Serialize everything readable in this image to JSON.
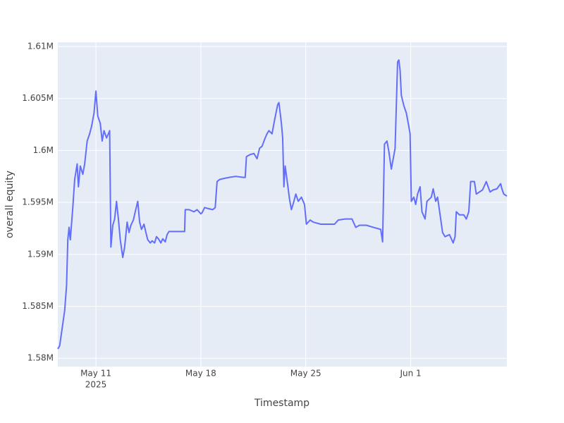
{
  "chart_data": {
    "type": "line",
    "x_label": "Timestamp",
    "y_label": "overall equity",
    "x": [
      "2025-05-08 11:00",
      "2025-05-08 14:00",
      "2025-05-08 18:00",
      "2025-05-08 22:00",
      "2025-05-09 01:00",
      "2025-05-09 03:00",
      "2025-05-09 05:00",
      "2025-05-09 07:00",
      "2025-05-09 11:00",
      "2025-05-09 14:00",
      "2025-05-09 18:00",
      "2025-05-09 20:00",
      "2025-05-09 23:00",
      "2025-05-10 03:00",
      "2025-05-10 06:00",
      "2025-05-10 10:00",
      "2025-05-10 14:00",
      "2025-05-10 17:00",
      "2025-05-10 21:00",
      "2025-05-11 00:00",
      "2025-05-11 03:00",
      "2025-05-11 07:00",
      "2025-05-11 10:00",
      "2025-05-11 13:00",
      "2025-05-11 17:00",
      "2025-05-11 20:00",
      "2025-05-11 22:00",
      "2025-05-12 00:00",
      "2025-05-12 03:00",
      "2025-05-12 06:00",
      "2025-05-12 09:00",
      "2025-05-12 12:00",
      "2025-05-12 15:00",
      "2025-05-12 19:00",
      "2025-05-12 22:00",
      "2025-05-13 02:00",
      "2025-05-13 05:00",
      "2025-05-13 08:00",
      "2025-05-13 12:00",
      "2025-05-13 15:00",
      "2025-05-13 19:00",
      "2025-05-13 22:00",
      "2025-05-14 01:00",
      "2025-05-14 05:00",
      "2025-05-14 08:00",
      "2025-05-14 11:00",
      "2025-05-14 15:00",
      "2025-05-14 18:00",
      "2025-05-14 22:00",
      "2025-05-15 01:00",
      "2025-05-15 04:00",
      "2025-05-15 08:00",
      "2025-05-15 11:00",
      "2025-05-15 15:00",
      "2025-05-15 18:00",
      "2025-05-15 21:00",
      "2025-05-16 03:00",
      "2025-05-16 14:00",
      "2025-05-16 22:00",
      "2025-05-16 23:00",
      "2025-05-17 05:00",
      "2025-05-17 13:00",
      "2025-05-17 18:00",
      "2025-05-18 00:00",
      "2025-05-18 02:00",
      "2025-05-18 06:00",
      "2025-05-18 12:00",
      "2025-05-18 19:00",
      "2025-05-18 23:00",
      "2025-05-19 02:00",
      "2025-05-19 06:00",
      "2025-05-19 13:00",
      "2025-05-19 21:00",
      "2025-05-20 08:00",
      "2025-05-20 20:00",
      "2025-05-20 23:00",
      "2025-05-21 01:00",
      "2025-05-21 07:00",
      "2025-05-21 13:00",
      "2025-05-21 18:00",
      "2025-05-21 22:00",
      "2025-05-22 02:00",
      "2025-05-22 07:00",
      "2025-05-22 10:00",
      "2025-05-22 13:00",
      "2025-05-22 18:00",
      "2025-05-22 22:00",
      "2025-05-23 03:00",
      "2025-05-23 05:00",
      "2025-05-23 09:00",
      "2025-05-23 11:00",
      "2025-05-23 13:00",
      "2025-05-23 15:00",
      "2025-05-23 19:00",
      "2025-05-23 22:00",
      "2025-05-24 01:00",
      "2025-05-24 05:00",
      "2025-05-24 08:00",
      "2025-05-24 12:00",
      "2025-05-24 17:00",
      "2025-05-24 22:00",
      "2025-05-25 01:00",
      "2025-05-25 07:00",
      "2025-05-25 12:00",
      "2025-05-26 00:00",
      "2025-05-26 11:00",
      "2025-05-26 22:00",
      "2025-05-27 04:00",
      "2025-05-27 15:00",
      "2025-05-28 02:00",
      "2025-05-28 08:00",
      "2025-05-28 14:00",
      "2025-05-29 01:00",
      "2025-05-29 12:00",
      "2025-05-30 00:00",
      "2025-05-30 03:00",
      "2025-05-30 06:00",
      "2025-05-30 10:00",
      "2025-05-30 13:00",
      "2025-05-30 17:00",
      "2025-05-30 20:00",
      "2025-05-30 23:00",
      "2025-05-31 03:00",
      "2025-05-31 05:00",
      "2025-05-31 07:00",
      "2025-05-31 09:00",
      "2025-05-31 13:00",
      "2025-05-31 17:00",
      "2025-05-31 21:00",
      "2025-05-31 23:00",
      "2025-06-01 01:00",
      "2025-06-01 05:00",
      "2025-06-01 08:00",
      "2025-06-01 11:00",
      "2025-06-01 15:00",
      "2025-06-01 18:00",
      "2025-06-01 23:00",
      "2025-06-02 02:00",
      "2025-06-02 09:00",
      "2025-06-02 12:00",
      "2025-06-02 16:00",
      "2025-06-02 19:00",
      "2025-06-03 00:00",
      "2025-06-03 03:00",
      "2025-06-03 07:00",
      "2025-06-03 14:00",
      "2025-06-03 20:00",
      "2025-06-03 23:00",
      "2025-06-04 01:00",
      "2025-06-04 06:00",
      "2025-06-04 13:00",
      "2025-06-04 17:00",
      "2025-06-04 21:00",
      "2025-06-05 00:00",
      "2025-06-05 06:00",
      "2025-06-05 09:00",
      "2025-06-05 14:00",
      "2025-06-05 19:00",
      "2025-06-06 01:00",
      "2025-06-06 07:00",
      "2025-06-06 12:00",
      "2025-06-06 18:00",
      "2025-06-07 00:00",
      "2025-06-07 02:00",
      "2025-06-07 05:00",
      "2025-06-07 10:00"
    ],
    "series": [
      {
        "color": "#636efa",
        "values": [
          1580900,
          1581200,
          1582900,
          1584600,
          1587000,
          1591400,
          1592600,
          1591400,
          1594500,
          1597200,
          1598700,
          1596500,
          1598500,
          1597700,
          1598700,
          1600900,
          1601600,
          1602300,
          1603600,
          1605700,
          1603300,
          1602600,
          1600900,
          1601900,
          1601200,
          1601600,
          1601900,
          1590700,
          1592800,
          1593400,
          1595100,
          1593400,
          1591400,
          1589700,
          1590700,
          1593100,
          1592100,
          1592800,
          1593300,
          1594100,
          1595100,
          1593100,
          1592400,
          1592900,
          1592100,
          1591400,
          1591100,
          1591300,
          1591100,
          1591700,
          1591500,
          1591100,
          1591500,
          1591200,
          1591900,
          1592200,
          1592200,
          1592200,
          1592200,
          1594300,
          1594300,
          1594100,
          1594300,
          1593900,
          1594000,
          1594500,
          1594400,
          1594300,
          1594500,
          1597000,
          1597200,
          1597300,
          1597400,
          1597500,
          1597400,
          1597400,
          1599400,
          1599600,
          1599700,
          1599200,
          1600200,
          1600400,
          1601200,
          1601600,
          1601900,
          1601600,
          1602900,
          1604400,
          1604600,
          1602600,
          1601200,
          1596500,
          1598500,
          1596700,
          1595300,
          1594300,
          1595100,
          1595800,
          1595100,
          1595500,
          1594800,
          1592900,
          1593300,
          1593100,
          1592900,
          1592900,
          1592900,
          1593300,
          1593400,
          1593400,
          1592600,
          1592800,
          1592800,
          1592600,
          1592400,
          1591200,
          1600600,
          1600900,
          1599900,
          1598200,
          1599200,
          1600200,
          1608500,
          1608700,
          1607700,
          1605300,
          1604300,
          1603600,
          1602300,
          1601600,
          1595100,
          1595500,
          1594800,
          1595800,
          1596500,
          1594100,
          1593400,
          1595100,
          1595500,
          1596300,
          1595100,
          1595500,
          1593400,
          1592100,
          1591700,
          1591900,
          1591100,
          1591700,
          1594100,
          1593800,
          1593800,
          1593400,
          1594100,
          1597000,
          1597000,
          1595800,
          1596000,
          1596200,
          1597000,
          1596000,
          1596200,
          1596300,
          1596800,
          1596300,
          1595800,
          1595600
        ]
      }
    ],
    "xlim": [
      "2025-05-08 11:00",
      "2025-06-07 10:00"
    ],
    "xticks": [
      {
        "value": "2025-05-11 00:00",
        "label": "May 11"
      },
      {
        "value": "2025-05-18 00:00",
        "label": "May 18"
      },
      {
        "value": "2025-05-25 00:00",
        "label": "May 25"
      },
      {
        "value": "2025-06-01 00:00",
        "label": "Jun 1"
      }
    ],
    "x_year_label": "2025",
    "ylim": [
      1579200,
      1610400
    ],
    "yticks": [
      {
        "value": 1580000,
        "label": "1.58M"
      },
      {
        "value": 1585000,
        "label": "1.585M"
      },
      {
        "value": 1590000,
        "label": "1.59M"
      },
      {
        "value": 1595000,
        "label": "1.595M"
      },
      {
        "value": 1600000,
        "label": "1.6M"
      },
      {
        "value": 1605000,
        "label": "1.605M"
      },
      {
        "value": 1610000,
        "label": "1.61M"
      }
    ],
    "grid": true
  }
}
